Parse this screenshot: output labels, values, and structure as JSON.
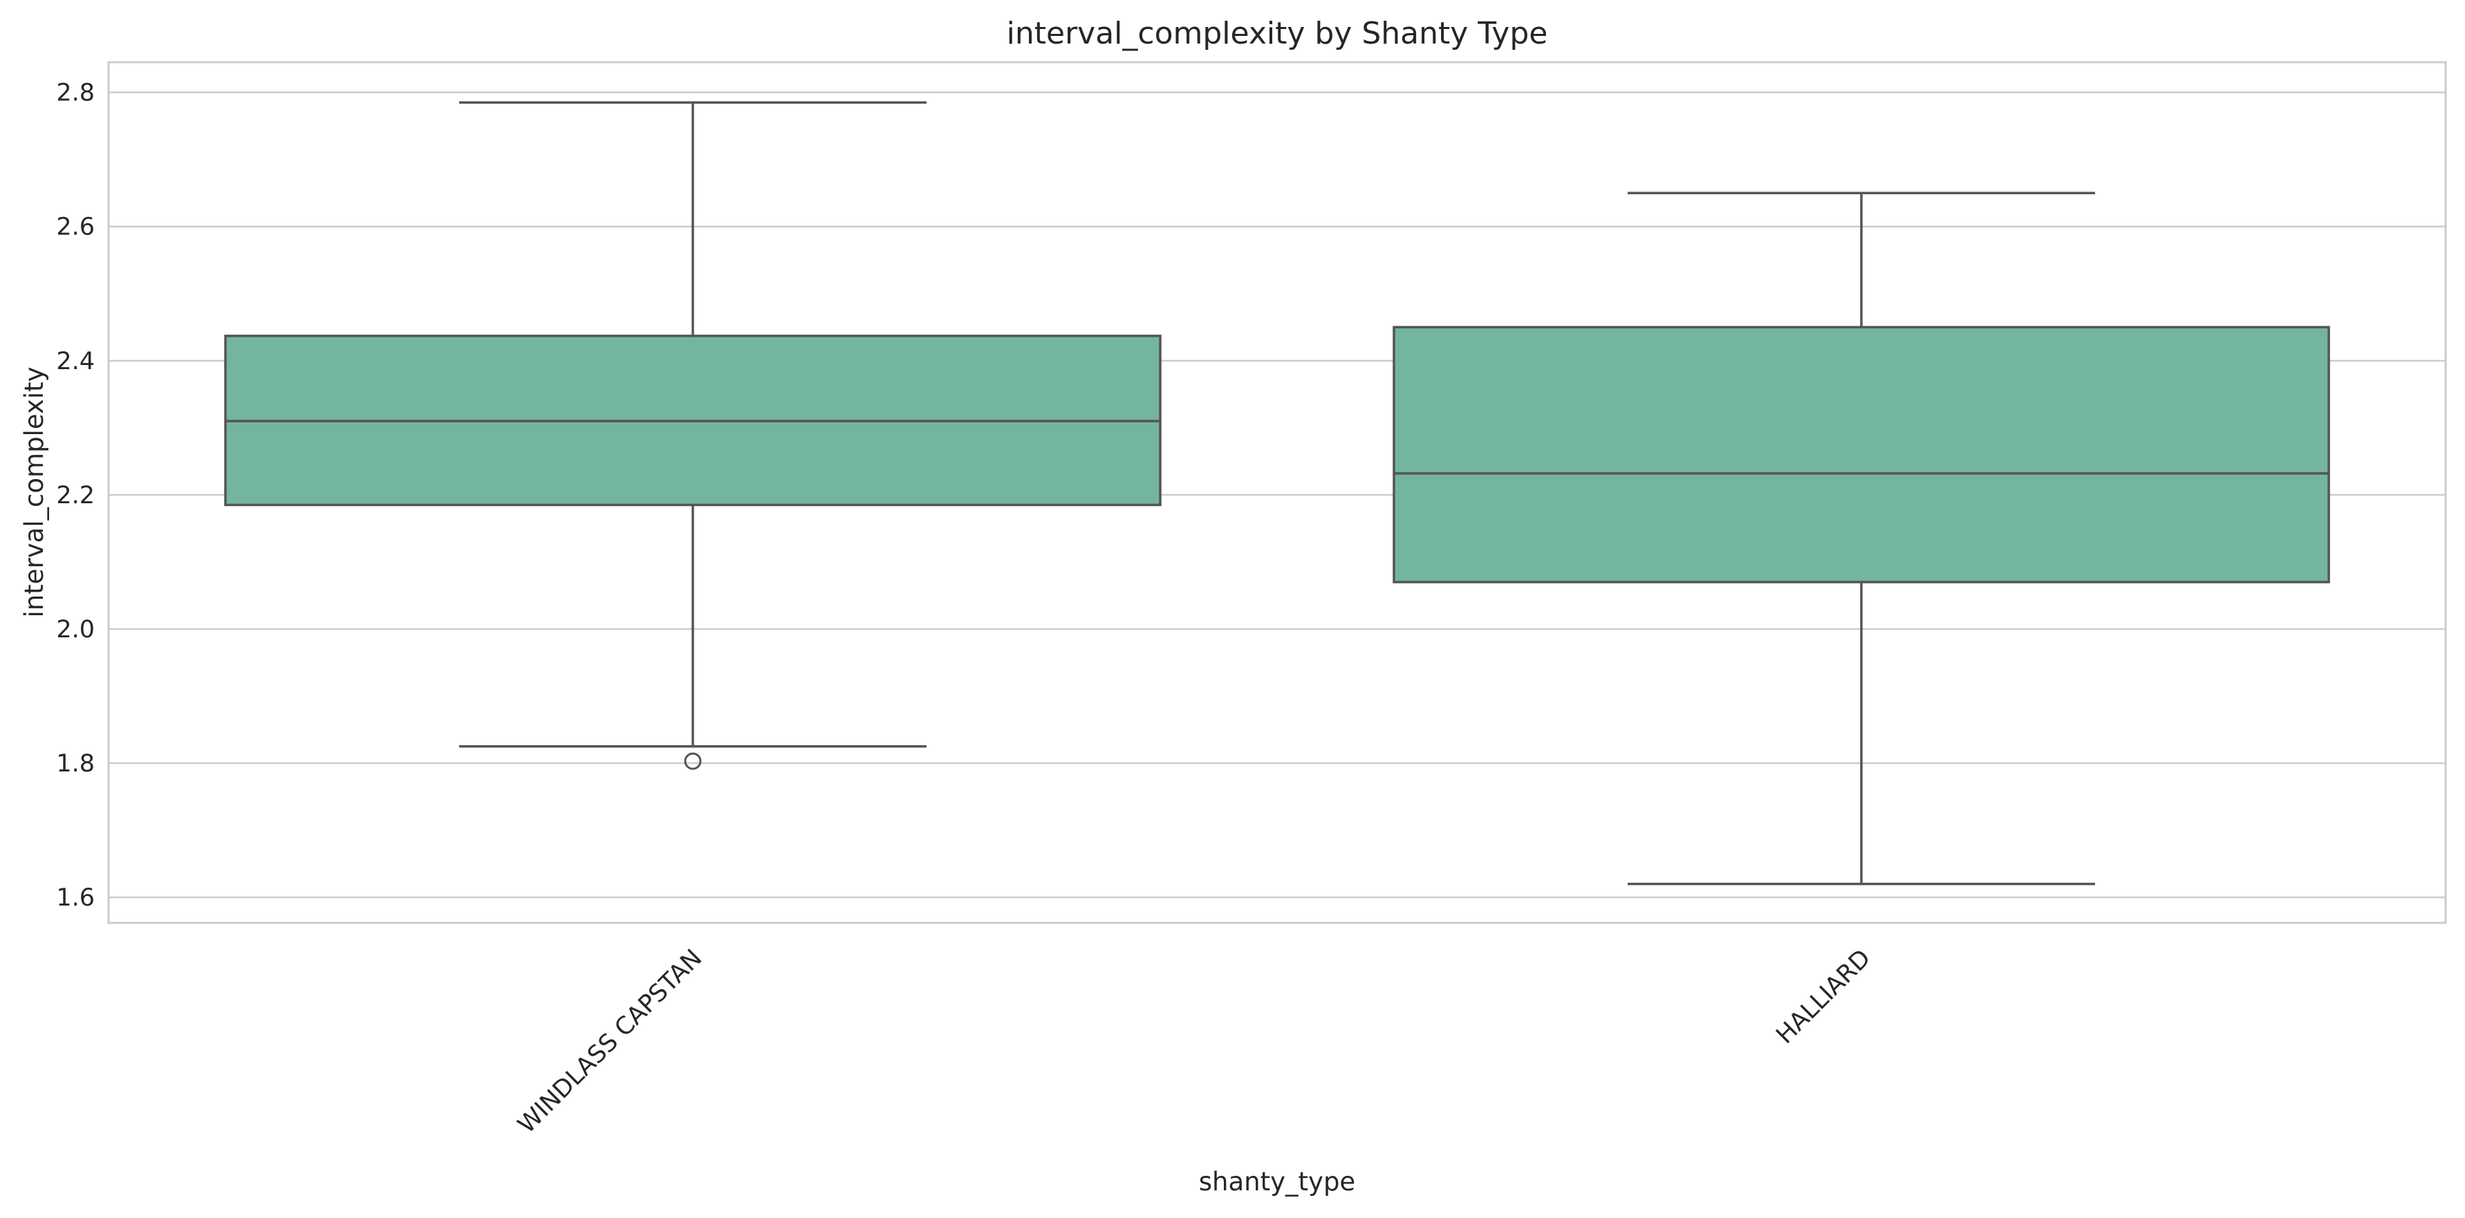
{
  "chart_data": {
    "type": "box",
    "title": "interval_complexity by Shanty Type",
    "xlabel": "shanty_type",
    "ylabel": "interval_complexity",
    "categories": [
      "WINDLASS CAPSTAN",
      "HALLIARD"
    ],
    "boxes": [
      {
        "category": "WINDLASS CAPSTAN",
        "whisker_low": 1.825,
        "q1": 2.185,
        "median": 2.31,
        "q3": 2.437,
        "whisker_high": 2.785,
        "outliers": [
          1.803
        ]
      },
      {
        "category": "HALLIARD",
        "whisker_low": 1.62,
        "q1": 2.07,
        "median": 2.232,
        "q3": 2.45,
        "whisker_high": 2.65,
        "outliers": []
      }
    ],
    "ylim": [
      1.562,
      2.845
    ],
    "yticks": [
      1.6,
      1.8,
      2.0,
      2.2,
      2.4,
      2.6,
      2.8
    ],
    "ytick_labels": [
      "1.6",
      "1.8",
      "2.0",
      "2.2",
      "2.4",
      "2.6",
      "2.8"
    ],
    "grid": true,
    "colors": {
      "box_fill": "#73b5a0",
      "line": "#555555",
      "grid": "#cccccc",
      "frame": "#cccccc"
    }
  }
}
